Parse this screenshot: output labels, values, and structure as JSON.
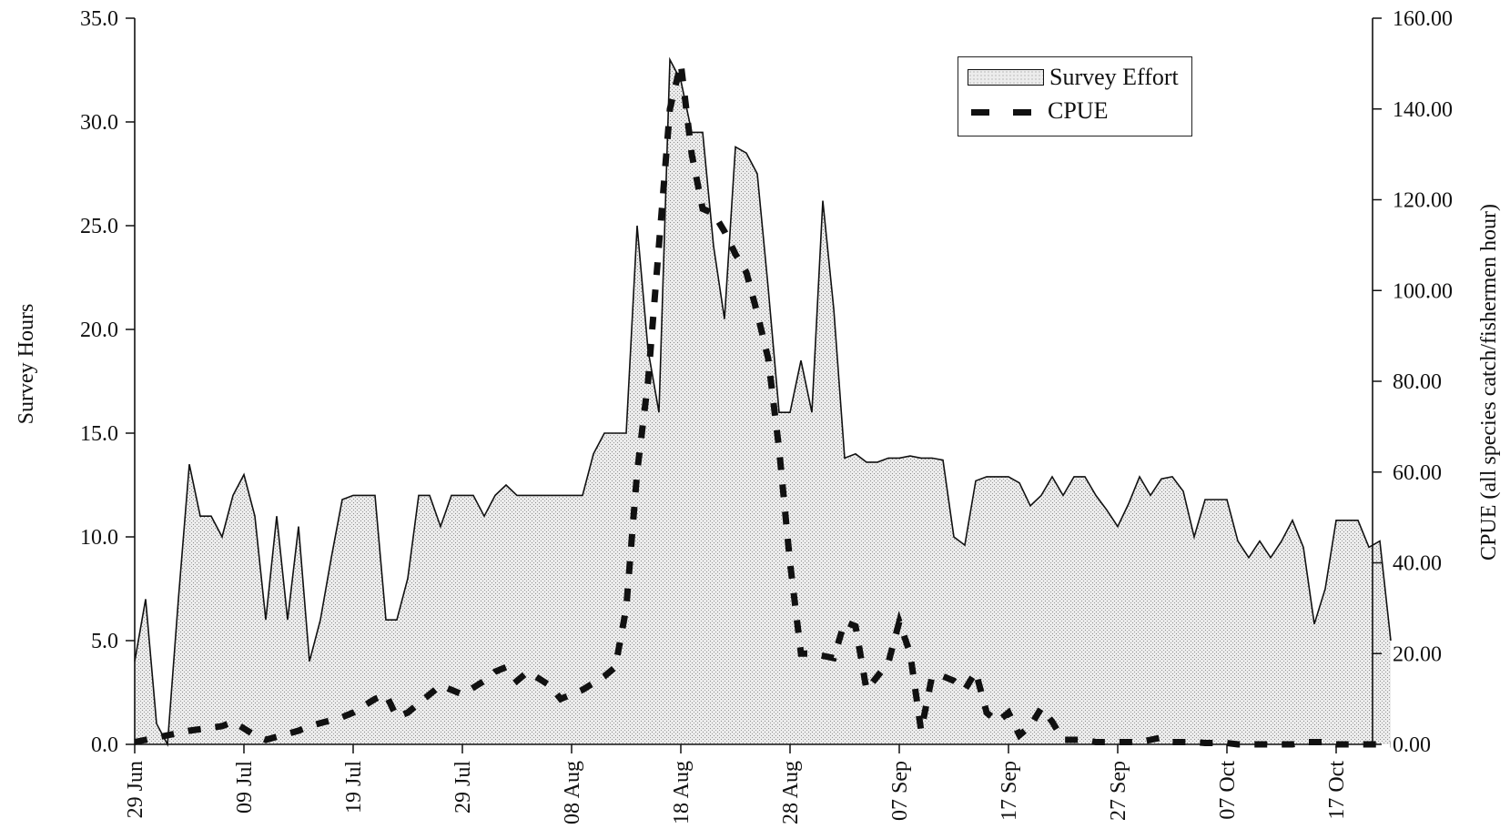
{
  "chart_data": {
    "type": "area",
    "ylabel": "Survey Hours",
    "y2label": "CPUE (all species catch/fishermen hour)",
    "ylim": [
      0,
      35
    ],
    "y2lim": [
      0,
      160
    ],
    "yticks": [
      "0.0",
      "5.0",
      "10.0",
      "15.0",
      "20.0",
      "25.0",
      "30.0",
      "35.0"
    ],
    "y2ticks": [
      "0.00",
      "20.00",
      "40.00",
      "60.00",
      "80.00",
      "100.00",
      "120.00",
      "140.00",
      "160.00"
    ],
    "xticks": [
      "29 Jun",
      "09 Jul",
      "19 Jul",
      "29 Jul",
      "08 Aug",
      "18 Aug",
      "28 Aug",
      "07 Sep",
      "17 Sep",
      "27 Sep",
      "07 Oct",
      "17 Oct"
    ],
    "x_start": "29 Jun",
    "x_end_day": 113,
    "grid": false,
    "legend_position": "top-right",
    "legend": [
      "Survey Effort",
      "CPUE"
    ],
    "series": [
      {
        "name": "Survey Effort",
        "axis": "left",
        "style": "stippled-area",
        "points": [
          [
            0,
            4
          ],
          [
            1,
            7
          ],
          [
            2,
            1
          ],
          [
            3,
            0
          ],
          [
            4,
            7
          ],
          [
            5,
            13.5
          ],
          [
            6,
            11
          ],
          [
            7,
            11
          ],
          [
            8,
            10
          ],
          [
            9,
            12
          ],
          [
            10,
            13
          ],
          [
            11,
            11
          ],
          [
            12,
            6
          ],
          [
            13,
            11
          ],
          [
            14,
            6
          ],
          [
            15,
            10.5
          ],
          [
            16,
            4
          ],
          [
            17,
            6
          ],
          [
            18,
            9
          ],
          [
            19,
            11.8
          ],
          [
            20,
            12
          ],
          [
            21,
            12
          ],
          [
            22,
            12
          ],
          [
            23,
            6
          ],
          [
            24,
            6
          ],
          [
            25,
            8
          ],
          [
            26,
            12
          ],
          [
            27,
            12
          ],
          [
            28,
            10.5
          ],
          [
            29,
            12
          ],
          [
            30,
            12
          ],
          [
            31,
            12
          ],
          [
            32,
            11
          ],
          [
            33,
            12
          ],
          [
            34,
            12.5
          ],
          [
            35,
            12
          ],
          [
            36,
            12
          ],
          [
            37,
            12
          ],
          [
            38,
            12
          ],
          [
            39,
            12
          ],
          [
            40,
            12
          ],
          [
            41,
            12
          ],
          [
            42,
            14
          ],
          [
            43,
            15
          ],
          [
            44,
            15
          ],
          [
            45,
            15
          ],
          [
            46,
            25
          ],
          [
            47,
            19
          ],
          [
            48,
            16
          ],
          [
            49,
            33
          ],
          [
            50,
            32
          ],
          [
            51,
            29.5
          ],
          [
            52,
            29.5
          ],
          [
            53,
            24
          ],
          [
            54,
            20.5
          ],
          [
            55,
            28.8
          ],
          [
            56,
            28.5
          ],
          [
            57,
            27.5
          ],
          [
            58,
            22
          ],
          [
            59,
            16
          ],
          [
            60,
            16
          ],
          [
            61,
            18.5
          ],
          [
            62,
            16
          ],
          [
            63,
            26.2
          ],
          [
            64,
            21
          ],
          [
            65,
            13.8
          ],
          [
            66,
            14
          ],
          [
            67,
            13.6
          ],
          [
            68,
            13.6
          ],
          [
            69,
            13.8
          ],
          [
            70,
            13.8
          ],
          [
            71,
            13.9
          ],
          [
            72,
            13.8
          ],
          [
            73,
            13.8
          ],
          [
            74,
            13.7
          ],
          [
            75,
            10
          ],
          [
            76,
            9.6
          ],
          [
            77,
            12.7
          ],
          [
            78,
            12.9
          ],
          [
            79,
            12.9
          ],
          [
            80,
            12.9
          ],
          [
            81,
            12.6
          ],
          [
            82,
            11.5
          ],
          [
            83,
            12
          ],
          [
            84,
            12.9
          ],
          [
            85,
            12
          ],
          [
            86,
            12.9
          ],
          [
            87,
            12.9
          ],
          [
            88,
            12
          ],
          [
            89,
            11.3
          ],
          [
            90,
            10.5
          ],
          [
            91,
            11.6
          ],
          [
            92,
            12.9
          ],
          [
            93,
            12
          ],
          [
            94,
            12.8
          ],
          [
            95,
            12.9
          ],
          [
            96,
            12.2
          ],
          [
            97,
            10
          ],
          [
            98,
            11.8
          ],
          [
            99,
            11.8
          ],
          [
            100,
            11.8
          ],
          [
            101,
            9.8
          ],
          [
            102,
            9
          ],
          [
            103,
            9.8
          ],
          [
            104,
            9
          ],
          [
            105,
            9.8
          ],
          [
            106,
            10.8
          ],
          [
            107,
            9.5
          ],
          [
            108,
            5.8
          ],
          [
            109,
            7.5
          ],
          [
            110,
            10.8
          ],
          [
            111,
            10.8
          ],
          [
            112,
            10.8
          ],
          [
            113,
            9.5
          ],
          [
            114,
            9.8
          ],
          [
            115,
            5
          ]
        ]
      },
      {
        "name": "CPUE",
        "axis": "right",
        "style": "dashed",
        "points": [
          [
            0,
            0.5
          ],
          [
            1,
            1
          ],
          [
            4,
            2.5
          ],
          [
            5,
            3
          ],
          [
            8,
            4
          ],
          [
            9,
            5
          ],
          [
            11,
            2
          ],
          [
            12,
            1
          ],
          [
            15,
            3
          ],
          [
            16,
            4
          ],
          [
            19,
            6
          ],
          [
            20,
            7
          ],
          [
            22,
            10
          ],
          [
            23,
            11
          ],
          [
            24,
            6
          ],
          [
            25,
            7
          ],
          [
            27,
            11
          ],
          [
            28,
            13
          ],
          [
            29,
            12
          ],
          [
            30,
            11
          ],
          [
            32,
            14
          ],
          [
            33,
            16
          ],
          [
            34,
            17
          ],
          [
            35,
            14
          ],
          [
            36,
            16
          ],
          [
            38,
            13
          ],
          [
            39,
            10
          ],
          [
            40,
            11
          ],
          [
            41,
            12
          ],
          [
            43,
            15
          ],
          [
            44,
            17
          ],
          [
            45,
            30
          ],
          [
            46,
            60
          ],
          [
            47,
            80
          ],
          [
            48,
            110
          ],
          [
            49,
            140
          ],
          [
            50,
            150
          ],
          [
            51,
            130
          ],
          [
            52,
            118
          ],
          [
            53,
            117
          ],
          [
            54,
            113
          ],
          [
            55,
            108
          ],
          [
            56,
            104
          ],
          [
            57,
            95
          ],
          [
            58,
            85
          ],
          [
            59,
            65
          ],
          [
            60,
            40
          ],
          [
            61,
            20
          ],
          [
            62,
            20
          ],
          [
            63,
            19.5
          ],
          [
            64,
            19
          ],
          [
            65,
            27
          ],
          [
            66,
            26
          ],
          [
            67,
            12
          ],
          [
            68,
            15
          ],
          [
            69,
            18
          ],
          [
            70,
            27
          ],
          [
            71,
            20
          ],
          [
            72,
            3
          ],
          [
            73,
            15
          ],
          [
            74,
            15
          ],
          [
            75,
            14
          ],
          [
            76,
            12
          ],
          [
            77,
            16
          ],
          [
            78,
            7
          ],
          [
            79,
            5
          ],
          [
            80,
            7
          ],
          [
            81,
            2
          ],
          [
            82,
            4
          ],
          [
            83,
            8
          ],
          [
            84,
            5
          ],
          [
            85,
            1
          ],
          [
            86,
            1
          ],
          [
            87,
            1
          ],
          [
            88,
            0.5
          ],
          [
            89,
            0.5
          ],
          [
            90,
            0.5
          ],
          [
            91,
            0.5
          ],
          [
            92,
            0.5
          ],
          [
            93,
            1
          ],
          [
            94,
            1.5
          ],
          [
            95,
            0.5
          ],
          [
            96,
            0.5
          ],
          [
            97,
            0.5
          ],
          [
            98,
            0.3
          ],
          [
            99,
            0.3
          ],
          [
            100,
            0.3
          ],
          [
            101,
            0
          ],
          [
            102,
            0
          ],
          [
            103,
            0
          ],
          [
            104,
            0
          ],
          [
            105,
            0
          ],
          [
            106,
            0
          ],
          [
            107,
            0.5
          ],
          [
            108,
            0.5
          ],
          [
            109,
            0.5
          ],
          [
            110,
            0
          ],
          [
            111,
            0
          ],
          [
            112,
            0
          ],
          [
            113,
            0
          ],
          [
            114,
            0
          ],
          [
            115,
            0
          ]
        ]
      }
    ]
  }
}
